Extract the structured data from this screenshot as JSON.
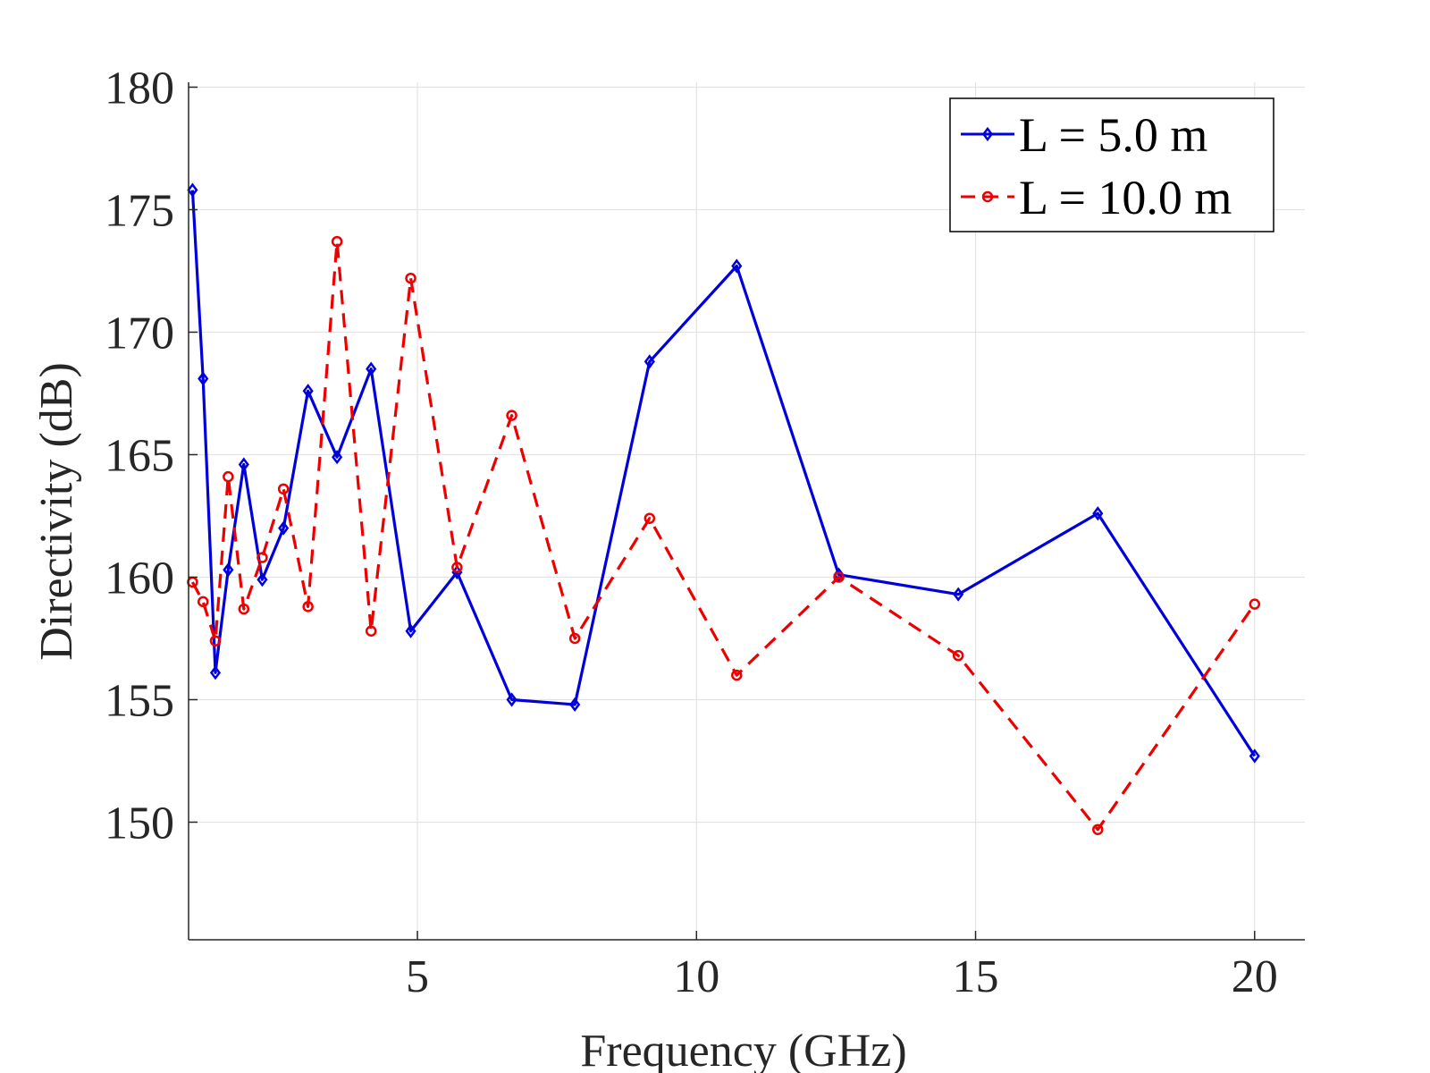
{
  "chart_data": {
    "type": "line",
    "title": "",
    "xlabel": "Frequency (GHz)",
    "ylabel": "Directivity (dB)",
    "xlim": [
      0.9,
      20.9
    ],
    "ylim": [
      145.2,
      180.2
    ],
    "xticks": [
      5,
      10,
      15,
      20
    ],
    "xtick_labels": [
      "5",
      "10",
      "15",
      "20"
    ],
    "yticks": [
      150,
      155,
      160,
      165,
      170,
      175,
      180
    ],
    "ytick_labels": [
      "150",
      "155",
      "160",
      "165",
      "170",
      "175",
      "180"
    ],
    "grid": true,
    "legend_position": "top-right",
    "series": [
      {
        "name": "L = 5.0 m",
        "color": "#0000dd",
        "line_style": "solid",
        "marker": "diamond",
        "x": [
          0.97,
          1.16,
          1.38,
          1.61,
          1.89,
          2.22,
          2.6,
          3.04,
          3.56,
          4.17,
          4.88,
          5.71,
          6.69,
          7.82,
          9.16,
          10.72,
          12.55,
          14.69,
          17.19,
          20.0
        ],
        "y": [
          175.8,
          168.1,
          156.1,
          160.3,
          164.6,
          159.9,
          162.0,
          167.6,
          164.9,
          168.5,
          157.8,
          160.2,
          155.0,
          154.8,
          168.8,
          172.7,
          160.1,
          159.3,
          162.6,
          152.7
        ]
      },
      {
        "name": "L = 10.0 m",
        "color": "#ee0000",
        "line_style": "dashed",
        "marker": "circle",
        "x": [
          0.97,
          1.16,
          1.38,
          1.61,
          1.89,
          2.22,
          2.6,
          3.04,
          3.56,
          4.17,
          4.88,
          5.71,
          6.69,
          7.82,
          9.16,
          10.72,
          12.55,
          14.69,
          17.19,
          20.0
        ],
        "y": [
          159.8,
          159.0,
          157.4,
          164.1,
          158.7,
          160.8,
          163.6,
          158.8,
          173.7,
          157.8,
          172.2,
          160.4,
          166.6,
          157.5,
          162.4,
          156.0,
          160.0,
          156.8,
          149.7,
          158.9
        ]
      }
    ]
  }
}
